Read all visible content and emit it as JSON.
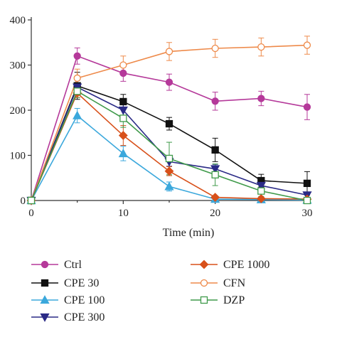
{
  "chart_data": {
    "type": "line",
    "title": "",
    "xlabel": "Time (min)",
    "ylabel": "",
    "xlim": [
      0,
      30
    ],
    "ylim": [
      0,
      400
    ],
    "xticks": [
      "0",
      "10",
      "20",
      "30"
    ],
    "yticks": [
      "0",
      "100",
      "200",
      "300",
      "400"
    ],
    "grid": false,
    "legend_position": "bottom",
    "x": [
      0,
      5,
      10,
      15,
      20,
      25,
      30
    ],
    "series": [
      {
        "name": "Ctrl",
        "color": "#b5399a",
        "marker": "circle-filled",
        "values": [
          0,
          320,
          282,
          262,
          220,
          226,
          207
        ],
        "errors": [
          0,
          18,
          18,
          18,
          20,
          16,
          28
        ]
      },
      {
        "name": "CPE 30",
        "color": "#111111",
        "marker": "square-filled",
        "values": [
          0,
          254,
          219,
          170,
          112,
          44,
          38
        ],
        "errors": [
          0,
          30,
          16,
          14,
          26,
          14,
          26
        ]
      },
      {
        "name": "CPE 100",
        "color": "#3ba8dc",
        "marker": "triangle-up-filled",
        "values": [
          0,
          188,
          104,
          31,
          3,
          2,
          1
        ],
        "errors": [
          0,
          16,
          16,
          10,
          0,
          0,
          0
        ]
      },
      {
        "name": "CPE 300",
        "color": "#2a2a86",
        "marker": "triangle-down-filled",
        "values": [
          0,
          251,
          200,
          86,
          70,
          33,
          12
        ],
        "errors": [
          0,
          16,
          12,
          10,
          10,
          8,
          6
        ]
      },
      {
        "name": "CPE 1000",
        "color": "#d8501a",
        "marker": "diamond-filled",
        "values": [
          0,
          238,
          144,
          65,
          7,
          4,
          3
        ],
        "errors": [
          0,
          10,
          22,
          10,
          0,
          0,
          0
        ]
      },
      {
        "name": "CFN",
        "color": "#ee8a4a",
        "marker": "circle-open",
        "values": [
          0,
          271,
          300,
          330,
          337,
          340,
          344
        ],
        "errors": [
          0,
          20,
          20,
          20,
          20,
          20,
          20
        ]
      },
      {
        "name": "DZP",
        "color": "#3f9a4a",
        "marker": "square-open",
        "values": [
          0,
          242,
          182,
          93,
          57,
          21,
          0
        ],
        "errors": [
          0,
          14,
          20,
          36,
          24,
          12,
          4
        ]
      }
    ]
  }
}
